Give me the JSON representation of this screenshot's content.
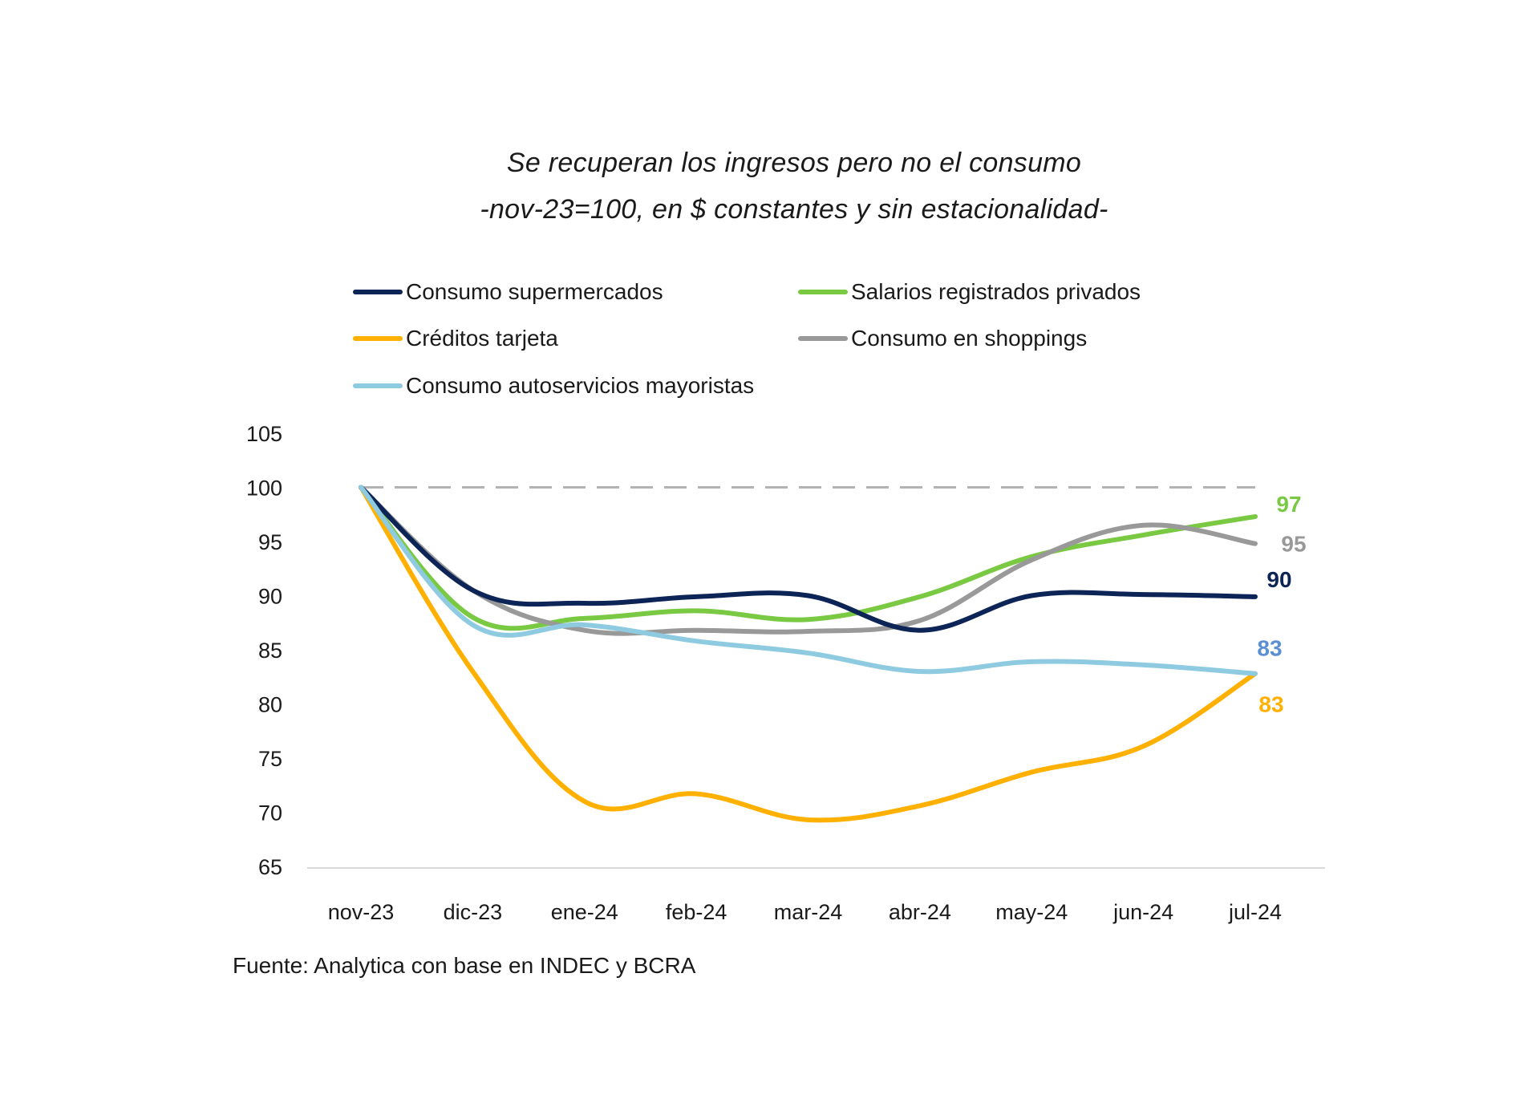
{
  "chart_data": {
    "type": "line",
    "title": "Se recuperan los ingresos pero no el consumo",
    "subtitle": "-nov-23=100, en $ constantes y sin estacionalidad-",
    "xlabel": "",
    "ylabel": "",
    "categories": [
      "nov-23",
      "dic-23",
      "ene-24",
      "feb-24",
      "mar-24",
      "abr-24",
      "may-24",
      "jun-24",
      "jul-24"
    ],
    "ylim": [
      65,
      105
    ],
    "yticks": [
      65,
      70,
      75,
      80,
      85,
      90,
      95,
      100,
      105
    ],
    "grid": false,
    "reference_line": {
      "value": 100,
      "style": "dashed",
      "color": "#b3b3b3"
    },
    "legend_position": "top",
    "series": [
      {
        "name": "Consumo supermercados",
        "color": "#0d2457",
        "values": [
          100,
          90.5,
          89.3,
          89.9,
          90.0,
          86.8,
          90.0,
          90.1,
          89.9
        ],
        "end_label": "90",
        "end_label_color": "#0d2457"
      },
      {
        "name": "Salarios registrados privados",
        "color": "#7ac943",
        "values": [
          100,
          88.0,
          87.9,
          88.6,
          87.8,
          89.9,
          93.6,
          95.6,
          97.3
        ],
        "end_label": "97",
        "end_label_color": "#7ac943"
      },
      {
        "name": "Créditos tarjeta",
        "color": "#ffb000",
        "values": [
          100,
          83.0,
          71.0,
          71.7,
          69.3,
          70.6,
          73.7,
          76.1,
          82.8
        ],
        "end_label": "83",
        "end_label_color": "#ffb000"
      },
      {
        "name": "Consumo en shoppings",
        "color": "#999999",
        "values": [
          100,
          90.5,
          86.8,
          86.8,
          86.7,
          87.7,
          93.3,
          96.5,
          94.8
        ],
        "end_label": "95",
        "end_label_color": "#999999"
      },
      {
        "name": "Consumo autoservicios mayoristas",
        "color": "#8ecae0",
        "values": [
          100,
          87.3,
          87.3,
          85.8,
          84.7,
          83.0,
          83.9,
          83.6,
          82.8
        ],
        "end_label": "83",
        "end_label_color": "#5b8fd4"
      }
    ]
  },
  "footer": {
    "source": "Fuente: Analytica con base en INDEC y BCRA"
  }
}
